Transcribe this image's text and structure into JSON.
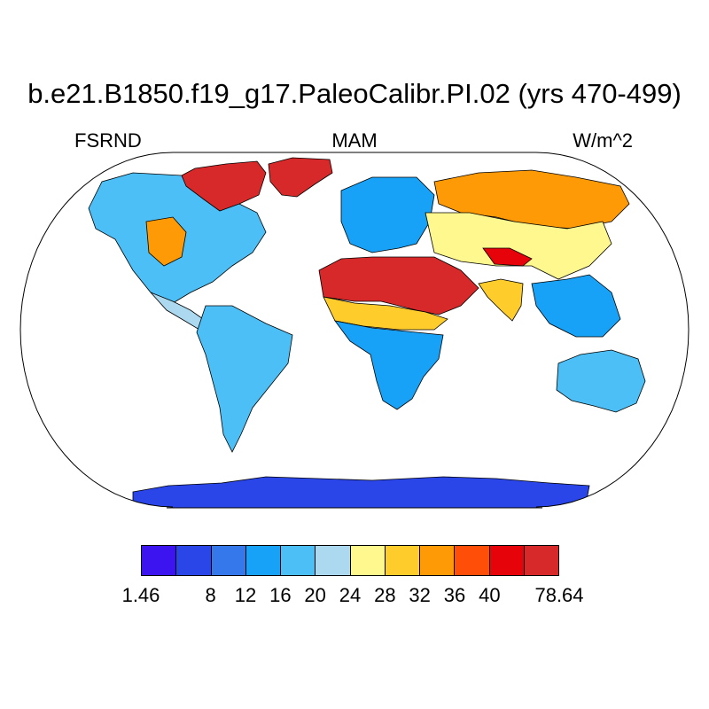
{
  "title": "b.e21.B1850.f19_g17.PaleoCalibr.PI.02 (yrs 470-499)",
  "subtitle_left": "FSRND",
  "subtitle_center": "MAM",
  "subtitle_right": "W/m^2",
  "colorbar": {
    "colors": [
      "#3b14f0",
      "#2a46e8",
      "#3578ec",
      "#17a2f7",
      "#4cc0f6",
      "#acd9f0",
      "#fff88e",
      "#ffcd2b",
      "#fe9a06",
      "#ff4e08",
      "#e7030a",
      "#d7292a"
    ],
    "labels": [
      "1.46",
      "8",
      "12",
      "16",
      "20",
      "24",
      "28",
      "32",
      "36",
      "40",
      "78.64"
    ]
  },
  "map": {
    "projection": "robinson",
    "regions": [
      {
        "name": "greenland",
        "level": 11
      },
      {
        "name": "canadian-arctic",
        "level": 11
      },
      {
        "name": "north-america",
        "level": 4
      },
      {
        "name": "us-southwest",
        "level": 8
      },
      {
        "name": "central-america",
        "level": 5
      },
      {
        "name": "south-america",
        "level": 4
      },
      {
        "name": "sahara-arabia",
        "level": 11
      },
      {
        "name": "sahel",
        "level": 7
      },
      {
        "name": "africa-south",
        "level": 3
      },
      {
        "name": "europe",
        "level": 3
      },
      {
        "name": "central-asia",
        "level": 6
      },
      {
        "name": "siberia",
        "level": 8
      },
      {
        "name": "tibet",
        "level": 10
      },
      {
        "name": "india",
        "level": 7
      },
      {
        "name": "southeast-asia",
        "level": 3
      },
      {
        "name": "australia",
        "level": 4
      },
      {
        "name": "antarctica",
        "level": 1
      }
    ]
  }
}
